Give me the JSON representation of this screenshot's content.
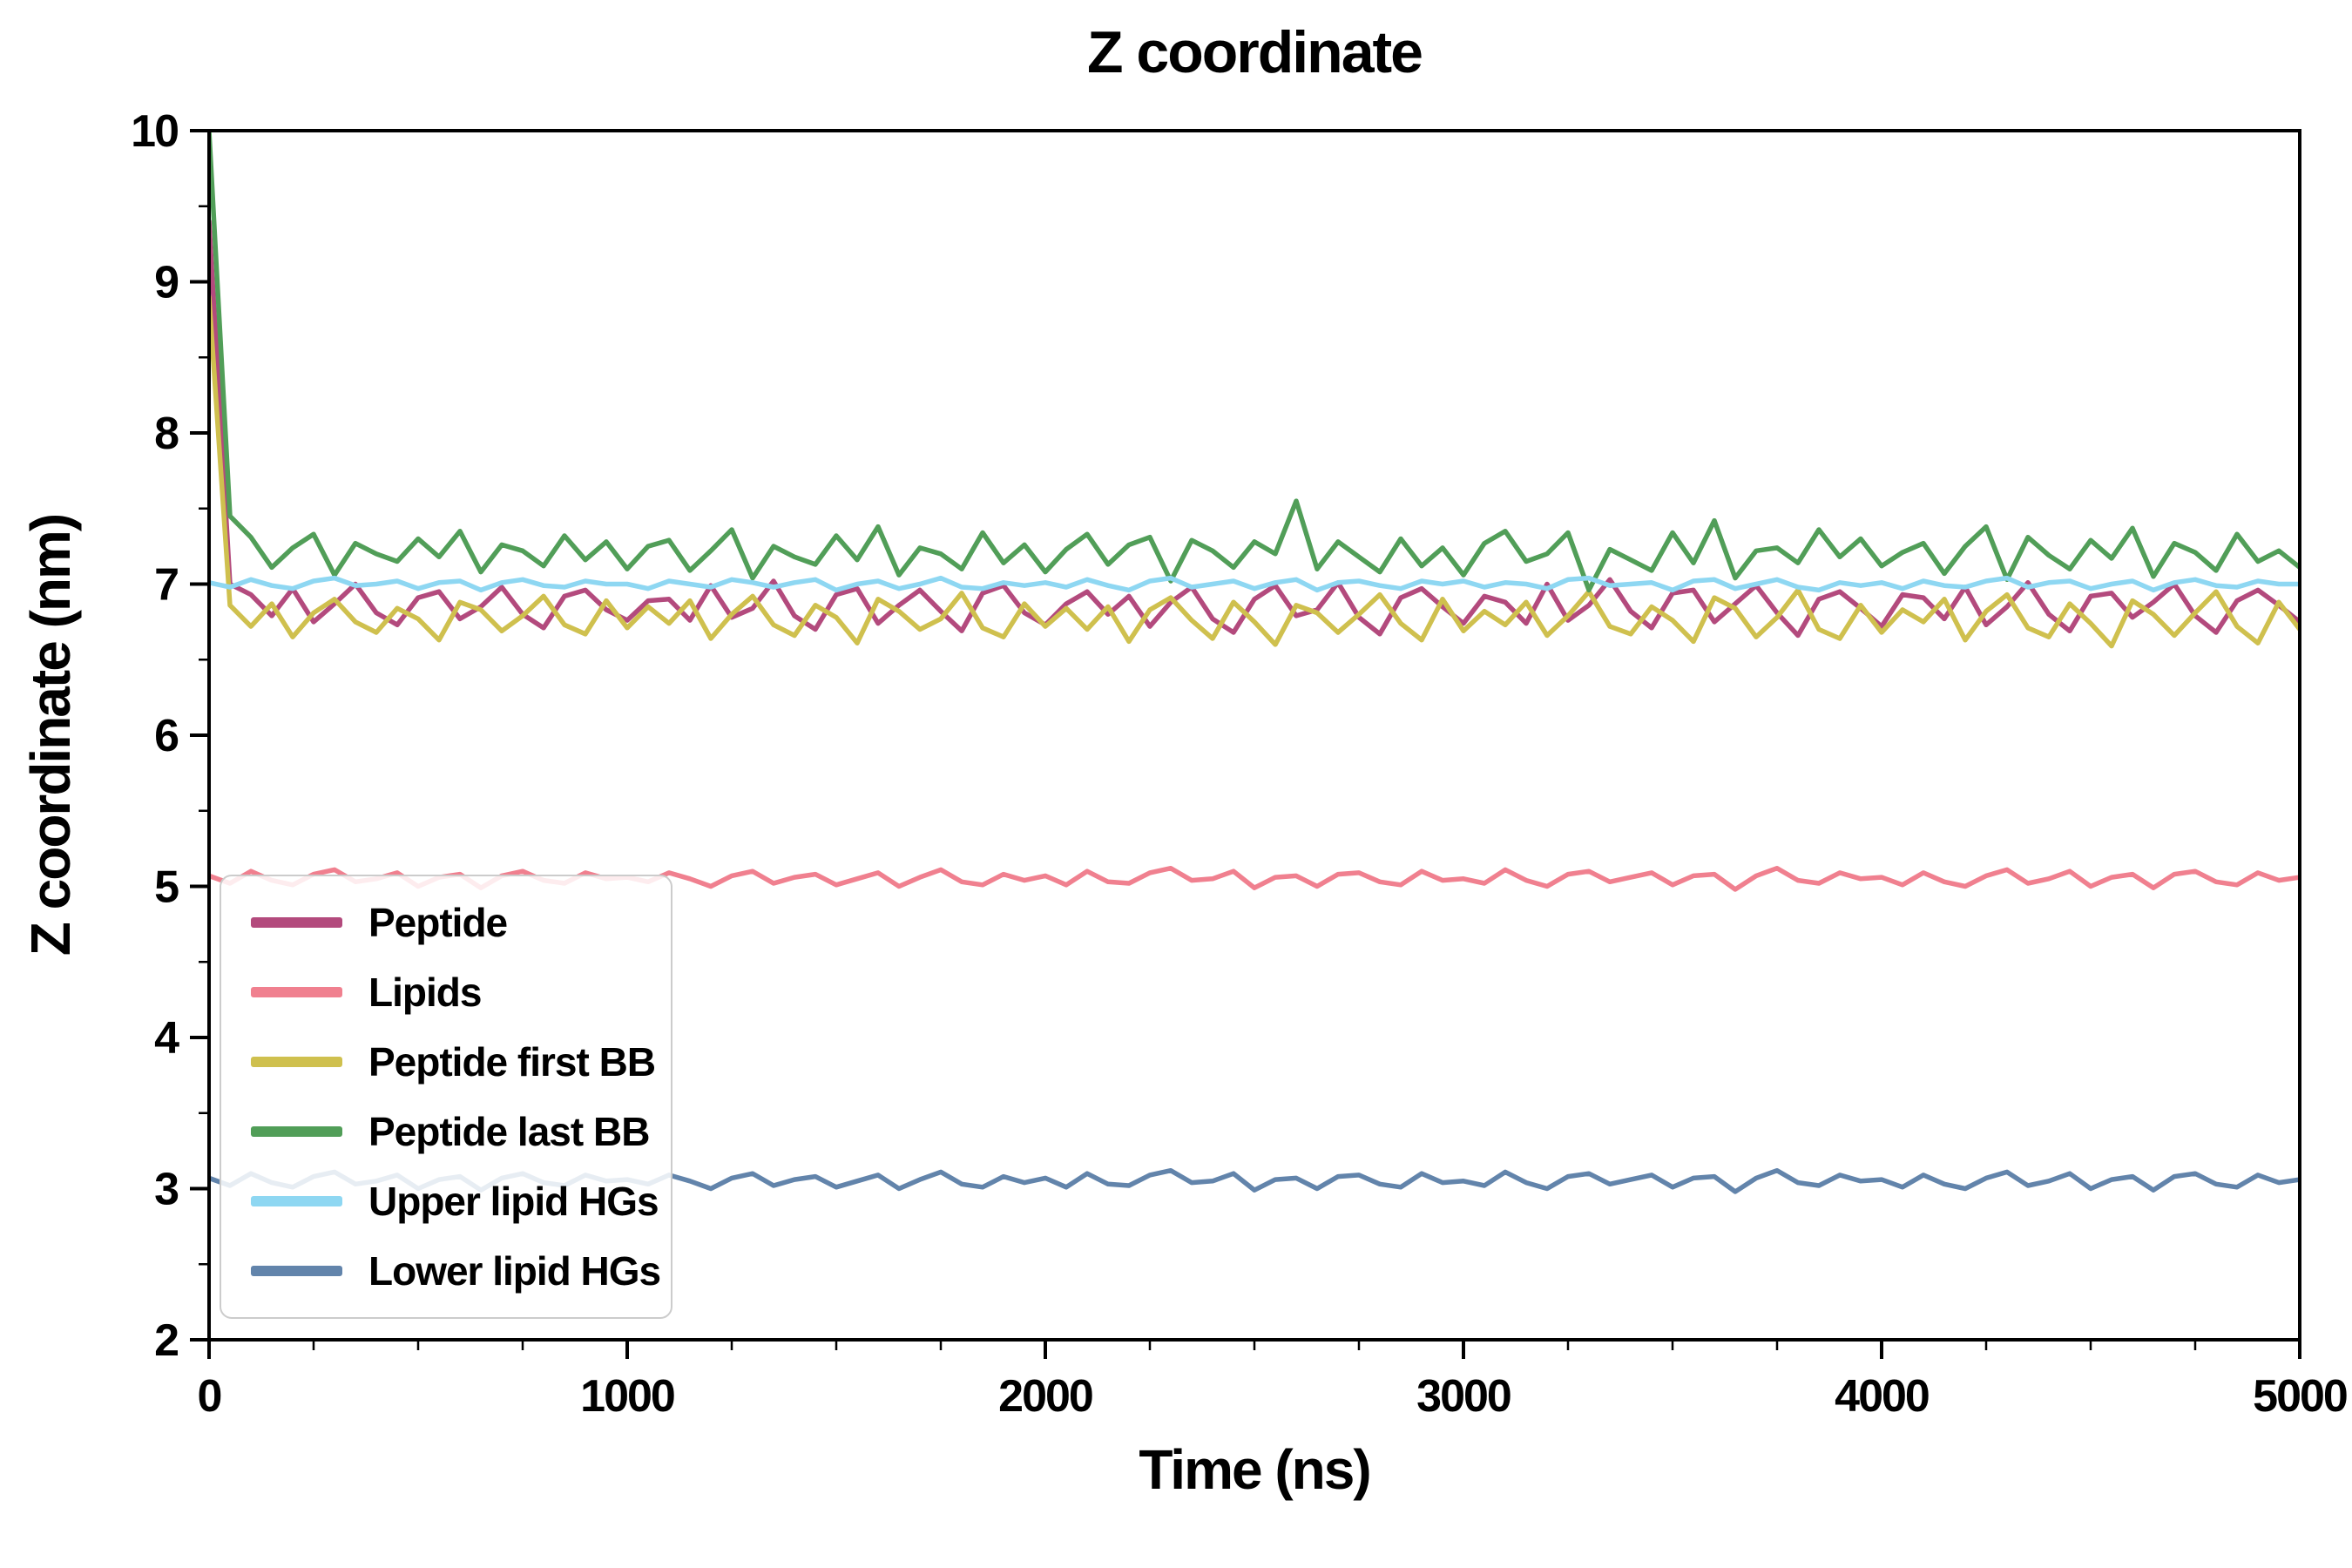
{
  "page": {
    "background": "#ffffff"
  },
  "chart_data": {
    "type": "line",
    "title": "Z coordinate",
    "xlabel": "Time (ns)",
    "ylabel": "Z coordinate (nm)",
    "xlim": [
      0,
      5000
    ],
    "ylim": [
      2,
      10
    ],
    "x_ticks": [
      0,
      1000,
      2000,
      3000,
      4000,
      5000
    ],
    "x_minor_step": 250,
    "y_ticks": [
      2,
      3,
      4,
      5,
      6,
      7,
      8,
      9,
      10
    ],
    "y_minor_step": 0.5,
    "grid": false,
    "legend_position": "lower left",
    "axis_color": "#000000",
    "x_ns": [
      0,
      50,
      100,
      150,
      200,
      250,
      300,
      350,
      400,
      450,
      500,
      550,
      600,
      650,
      700,
      750,
      800,
      850,
      900,
      950,
      1000,
      1050,
      1100,
      1150,
      1200,
      1250,
      1300,
      1350,
      1400,
      1450,
      1500,
      1550,
      1600,
      1650,
      1700,
      1750,
      1800,
      1850,
      1900,
      1950,
      2000,
      2050,
      2100,
      2150,
      2200,
      2250,
      2300,
      2350,
      2400,
      2450,
      2500,
      2550,
      2600,
      2650,
      2700,
      2750,
      2800,
      2850,
      2900,
      2950,
      3000,
      3050,
      3100,
      3150,
      3200,
      3250,
      3300,
      3350,
      3400,
      3450,
      3500,
      3550,
      3600,
      3650,
      3700,
      3750,
      3800,
      3850,
      3900,
      3950,
      4000,
      4050,
      4100,
      4150,
      4200,
      4250,
      4300,
      4350,
      4400,
      4450,
      4500,
      4550,
      4600,
      4650,
      4700,
      4750,
      4800,
      4850,
      4900,
      4950,
      5000
    ],
    "series": [
      {
        "name": "Peptide",
        "color": "#b34a7d",
        "values": [
          9.4,
          7.0,
          6.93,
          6.79,
          6.97,
          6.75,
          6.87,
          7.0,
          6.81,
          6.73,
          6.91,
          6.95,
          6.77,
          6.85,
          6.98,
          6.8,
          6.71,
          6.92,
          6.96,
          6.83,
          6.76,
          6.89,
          6.9,
          6.76,
          6.99,
          6.78,
          6.84,
          7.02,
          6.79,
          6.7,
          6.93,
          6.97,
          6.74,
          6.86,
          6.96,
          6.82,
          6.69,
          6.94,
          6.99,
          6.81,
          6.73,
          6.87,
          6.95,
          6.8,
          6.92,
          6.72,
          6.88,
          6.98,
          6.77,
          6.68,
          6.9,
          6.99,
          6.79,
          6.83,
          7.01,
          6.78,
          6.67,
          6.91,
          6.97,
          6.85,
          6.74,
          6.92,
          6.88,
          6.74,
          7.0,
          6.76,
          6.86,
          7.03,
          6.82,
          6.71,
          6.94,
          6.96,
          6.75,
          6.87,
          6.99,
          6.81,
          6.66,
          6.9,
          6.95,
          6.84,
          6.72,
          6.93,
          6.91,
          6.77,
          6.98,
          6.73,
          6.85,
          7.01,
          6.8,
          6.69,
          6.92,
          6.94,
          6.78,
          6.88,
          7.0,
          6.79,
          6.68,
          6.89,
          6.96,
          6.86,
          6.75
        ]
      },
      {
        "name": "Lipids",
        "color": "#f0808f",
        "values": [
          5.07,
          5.02,
          5.1,
          5.04,
          5.01,
          5.08,
          5.11,
          5.03,
          5.05,
          5.09,
          5.0,
          5.06,
          5.08,
          4.99,
          5.07,
          5.1,
          5.04,
          5.02,
          5.09,
          5.05,
          5.06,
          5.03,
          5.09,
          5.05,
          5.0,
          5.07,
          5.1,
          5.02,
          5.06,
          5.08,
          5.01,
          5.05,
          5.09,
          5.0,
          5.06,
          5.11,
          5.03,
          5.01,
          5.08,
          5.04,
          5.07,
          5.01,
          5.1,
          5.03,
          5.02,
          5.09,
          5.12,
          5.04,
          5.05,
          5.1,
          4.99,
          5.06,
          5.07,
          5.0,
          5.08,
          5.09,
          5.03,
          5.01,
          5.1,
          5.04,
          5.05,
          5.02,
          5.11,
          5.04,
          5.0,
          5.08,
          5.1,
          5.03,
          5.06,
          5.09,
          5.01,
          5.07,
          5.08,
          4.98,
          5.07,
          5.12,
          5.04,
          5.02,
          5.09,
          5.05,
          5.06,
          5.01,
          5.09,
          5.03,
          5.0,
          5.07,
          5.11,
          5.02,
          5.05,
          5.1,
          5.0,
          5.06,
          5.08,
          4.99,
          5.08,
          5.1,
          5.03,
          5.01,
          5.09,
          5.04,
          5.06
        ]
      },
      {
        "name": "Peptide first BB",
        "color": "#cfc04e",
        "values": [
          8.9,
          6.86,
          6.72,
          6.87,
          6.65,
          6.81,
          6.9,
          6.75,
          6.68,
          6.84,
          6.77,
          6.63,
          6.88,
          6.83,
          6.69,
          6.79,
          6.92,
          6.73,
          6.67,
          6.89,
          6.71,
          6.85,
          6.74,
          6.89,
          6.64,
          6.8,
          6.92,
          6.73,
          6.66,
          6.86,
          6.78,
          6.61,
          6.9,
          6.82,
          6.7,
          6.77,
          6.94,
          6.71,
          6.65,
          6.87,
          6.72,
          6.84,
          6.7,
          6.85,
          6.62,
          6.83,
          6.91,
          6.76,
          6.64,
          6.88,
          6.75,
          6.6,
          6.86,
          6.81,
          6.68,
          6.8,
          6.93,
          6.74,
          6.63,
          6.9,
          6.69,
          6.82,
          6.73,
          6.88,
          6.66,
          6.79,
          6.95,
          6.72,
          6.67,
          6.85,
          6.76,
          6.62,
          6.91,
          6.84,
          6.65,
          6.78,
          6.96,
          6.7,
          6.64,
          6.86,
          6.68,
          6.83,
          6.75,
          6.9,
          6.63,
          6.82,
          6.93,
          6.71,
          6.65,
          6.87,
          6.74,
          6.59,
          6.89,
          6.8,
          6.66,
          6.81,
          6.95,
          6.72,
          6.61,
          6.88,
          6.7
        ]
      },
      {
        "name": "Peptide last BB",
        "color": "#519e58",
        "values": [
          10.0,
          7.45,
          7.31,
          7.11,
          7.24,
          7.33,
          7.06,
          7.27,
          7.2,
          7.15,
          7.3,
          7.18,
          7.35,
          7.08,
          7.26,
          7.22,
          7.12,
          7.32,
          7.16,
          7.28,
          7.1,
          7.25,
          7.29,
          7.09,
          7.22,
          7.36,
          7.04,
          7.25,
          7.18,
          7.13,
          7.32,
          7.16,
          7.38,
          7.06,
          7.24,
          7.2,
          7.1,
          7.34,
          7.14,
          7.26,
          7.08,
          7.23,
          7.33,
          7.13,
          7.26,
          7.31,
          7.02,
          7.29,
          7.22,
          7.11,
          7.28,
          7.2,
          7.55,
          7.1,
          7.28,
          7.18,
          7.08,
          7.3,
          7.12,
          7.24,
          7.06,
          7.27,
          7.35,
          7.15,
          7.2,
          7.34,
          6.96,
          7.23,
          7.16,
          7.09,
          7.34,
          7.14,
          7.42,
          7.04,
          7.22,
          7.24,
          7.14,
          7.36,
          7.18,
          7.3,
          7.12,
          7.21,
          7.27,
          7.07,
          7.25,
          7.38,
          7.03,
          7.31,
          7.19,
          7.1,
          7.29,
          7.17,
          7.37,
          7.05,
          7.27,
          7.21,
          7.09,
          7.33,
          7.15,
          7.22,
          7.11
        ]
      },
      {
        "name": "Upper lipid HGs",
        "color": "#8ed7f2",
        "values": [
          7.01,
          6.98,
          7.03,
          6.99,
          6.97,
          7.02,
          7.04,
          6.99,
          7.0,
          7.02,
          6.97,
          7.01,
          7.02,
          6.96,
          7.01,
          7.03,
          6.99,
          6.98,
          7.02,
          7.0,
          7.0,
          6.97,
          7.02,
          7.0,
          6.98,
          7.03,
          7.01,
          6.98,
          7.01,
          7.03,
          6.96,
          7.0,
          7.02,
          6.97,
          7.0,
          7.04,
          6.98,
          6.97,
          7.01,
          6.99,
          7.01,
          6.98,
          7.03,
          6.99,
          6.96,
          7.02,
          7.04,
          6.98,
          7.0,
          7.02,
          6.97,
          7.01,
          7.03,
          6.96,
          7.01,
          7.02,
          6.99,
          6.97,
          7.02,
          7.0,
          7.02,
          6.98,
          7.01,
          7.0,
          6.97,
          7.03,
          7.04,
          6.99,
          7.0,
          7.01,
          6.96,
          7.02,
          7.03,
          6.97,
          7.0,
          7.03,
          6.98,
          6.96,
          7.01,
          6.99,
          7.01,
          6.97,
          7.02,
          6.99,
          6.98,
          7.02,
          7.04,
          6.98,
          7.01,
          7.02,
          6.97,
          7.0,
          7.02,
          6.96,
          7.01,
          7.03,
          6.99,
          6.98,
          7.02,
          7.0,
          7.0
        ]
      },
      {
        "name": "Lower lipid HGs",
        "color": "#6284ab",
        "values": [
          3.07,
          3.02,
          3.1,
          3.04,
          3.01,
          3.08,
          3.11,
          3.03,
          3.05,
          3.09,
          3.0,
          3.06,
          3.08,
          2.99,
          3.07,
          3.1,
          3.04,
          3.02,
          3.09,
          3.05,
          3.06,
          3.03,
          3.09,
          3.05,
          3.0,
          3.07,
          3.1,
          3.02,
          3.06,
          3.08,
          3.01,
          3.05,
          3.09,
          3.0,
          3.06,
          3.11,
          3.03,
          3.01,
          3.08,
          3.04,
          3.07,
          3.01,
          3.1,
          3.03,
          3.02,
          3.09,
          3.12,
          3.04,
          3.05,
          3.1,
          2.99,
          3.06,
          3.07,
          3.0,
          3.08,
          3.09,
          3.03,
          3.01,
          3.1,
          3.04,
          3.05,
          3.02,
          3.11,
          3.04,
          3.0,
          3.08,
          3.1,
          3.03,
          3.06,
          3.09,
          3.01,
          3.07,
          3.08,
          2.98,
          3.07,
          3.12,
          3.04,
          3.02,
          3.09,
          3.05,
          3.06,
          3.01,
          3.09,
          3.03,
          3.0,
          3.07,
          3.11,
          3.02,
          3.05,
          3.1,
          3.0,
          3.06,
          3.08,
          2.99,
          3.08,
          3.1,
          3.03,
          3.01,
          3.09,
          3.04,
          3.06
        ]
      }
    ]
  }
}
